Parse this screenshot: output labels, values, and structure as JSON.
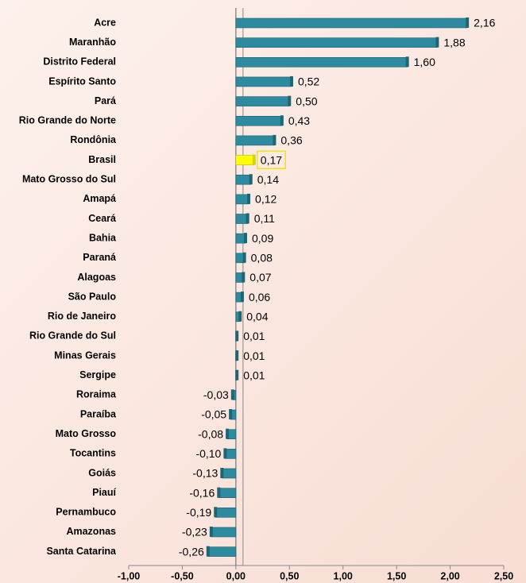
{
  "chart_data": {
    "type": "barh",
    "categories": [
      "Acre",
      "Maranhão",
      "Distrito Federal",
      "Espírito Santo",
      "Pará",
      "Rio Grande do Norte",
      "Rondônia",
      "Brasil",
      "Mato Grosso do Sul",
      "Amapá",
      "Ceará",
      "Bahia",
      "Paraná",
      "Alagoas",
      "São Paulo",
      "Rio de Janeiro",
      "Rio Grande do Sul",
      "Minas Gerais",
      "Sergipe",
      "Roraima",
      "Paraíba",
      "Mato Grosso",
      "Tocantins",
      "Goiás",
      "Piauí",
      "Pernambuco",
      "Amazonas",
      "Santa Catarina"
    ],
    "values": [
      2.16,
      1.88,
      1.6,
      0.52,
      0.5,
      0.43,
      0.36,
      0.17,
      0.14,
      0.12,
      0.11,
      0.09,
      0.08,
      0.07,
      0.06,
      0.04,
      0.01,
      0.01,
      0.01,
      -0.03,
      -0.05,
      -0.08,
      -0.1,
      -0.13,
      -0.16,
      -0.19,
      -0.23,
      -0.26
    ],
    "value_labels": [
      "2,16",
      "1,88",
      "1,60",
      "0,52",
      "0,50",
      "0,43",
      "0,36",
      "0,17",
      "0,14",
      "0,12",
      "0,11",
      "0,09",
      "0,08",
      "0,07",
      "0,06",
      "0,04",
      "0,01",
      "0,01",
      "0,01",
      "-0,03",
      "-0,05",
      "-0,08",
      "-0,10",
      "-0,13",
      "-0,16",
      "-0,19",
      "-0,23",
      "-0,26"
    ],
    "color": "#2e8a9e",
    "colors": [
      "#2e8a9e",
      "#2e8a9e",
      "#2e8a9e",
      "#2e8a9e",
      "#2e8a9e",
      "#2e8a9e",
      "#2e8a9e",
      "#ffff00",
      "#2e8a9e",
      "#2e8a9e",
      "#2e8a9e",
      "#2e8a9e",
      "#2e8a9e",
      "#2e8a9e",
      "#2e8a9e",
      "#2e8a9e",
      "#2e8a9e",
      "#2e8a9e",
      "#2e8a9e",
      "#2e8a9e",
      "#2e8a9e",
      "#2e8a9e",
      "#2e8a9e",
      "#2e8a9e",
      "#2e8a9e",
      "#2e8a9e",
      "#2e8a9e",
      "#2e8a9e"
    ],
    "xlim": [
      -1,
      2.5
    ],
    "xticks": [
      {
        "value": -1,
        "label": "-1,00"
      },
      {
        "value": -0.5,
        "label": "-0,50"
      },
      {
        "value": 0,
        "label": "0,00"
      },
      {
        "value": 0.5,
        "label": "0,50"
      },
      {
        "value": 1,
        "label": "1,00"
      },
      {
        "value": 1.5,
        "label": "1,50"
      },
      {
        "value": 2,
        "label": "2,00"
      },
      {
        "value": 2.5,
        "label": "2,50"
      }
    ]
  }
}
